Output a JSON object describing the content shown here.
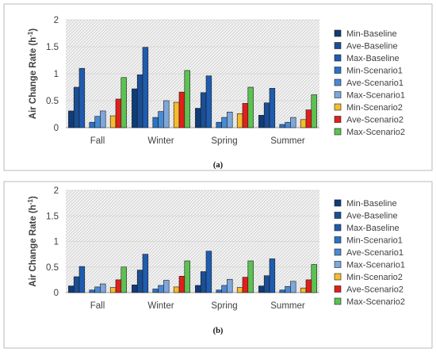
{
  "chart_data": [
    {
      "type": "bar",
      "caption": "(a)",
      "ylabel": "Air Change Rate (h",
      "ylabel_superscript": "-1",
      "ylabel_suffix": ")",
      "ylim": [
        0,
        2
      ],
      "yticks": [
        "0",
        "0.5",
        "1",
        "1.5",
        "2"
      ],
      "grid": true,
      "legend_position": "right",
      "categories": [
        "Fall",
        "Winter",
        "Spring",
        "Summer"
      ],
      "series": [
        {
          "name": "Min-Baseline",
          "color": "#0f3d78",
          "values": [
            0.31,
            0.72,
            0.36,
            0.23
          ]
        },
        {
          "name": "Ave-Baseline",
          "color": "#1a4f95",
          "values": [
            0.75,
            0.98,
            0.65,
            0.46
          ]
        },
        {
          "name": "Max-Baseline",
          "color": "#1f5cb0",
          "values": [
            1.1,
            1.49,
            0.96,
            0.73
          ]
        },
        {
          "name": "Min-Scenario1",
          "color": "#2a73c6",
          "values": [
            0.1,
            0.19,
            0.1,
            0.06
          ]
        },
        {
          "name": "Ave-Scenario1",
          "color": "#4a8ad4",
          "values": [
            0.21,
            0.3,
            0.19,
            0.1
          ]
        },
        {
          "name": "Max-Scenario1",
          "color": "#7ea7dc",
          "values": [
            0.31,
            0.5,
            0.29,
            0.19
          ]
        },
        {
          "name": "Min-Scenario2",
          "color": "#f5bc2e",
          "values": [
            0.22,
            0.47,
            0.26,
            0.15
          ]
        },
        {
          "name": "Ave-Scenario2",
          "color": "#e0201b",
          "values": [
            0.53,
            0.66,
            0.45,
            0.33
          ]
        },
        {
          "name": "Max-Scenario2",
          "color": "#5cc251",
          "values": [
            0.93,
            1.06,
            0.75,
            0.61
          ]
        }
      ]
    },
    {
      "type": "bar",
      "caption": "(b)",
      "ylabel": "Air Change Rate (h",
      "ylabel_superscript": "-1",
      "ylabel_suffix": ")",
      "ylim": [
        0,
        2
      ],
      "yticks": [
        "0",
        "0.5",
        "1",
        "1.5",
        "2"
      ],
      "grid": true,
      "legend_position": "right",
      "categories": [
        "Fall",
        "Winter",
        "Spring",
        "Summer"
      ],
      "series": [
        {
          "name": "Min-Baseline",
          "color": "#0f3d78",
          "values": [
            0.13,
            0.15,
            0.14,
            0.13
          ]
        },
        {
          "name": "Ave-Baseline",
          "color": "#1a4f95",
          "values": [
            0.31,
            0.44,
            0.41,
            0.33
          ]
        },
        {
          "name": "Max-Baseline",
          "color": "#1f5cb0",
          "values": [
            0.51,
            0.75,
            0.81,
            0.66
          ]
        },
        {
          "name": "Min-Scenario1",
          "color": "#2a73c6",
          "values": [
            0.05,
            0.07,
            0.05,
            0.05
          ]
        },
        {
          "name": "Ave-Scenario1",
          "color": "#4a8ad4",
          "values": [
            0.11,
            0.14,
            0.14,
            0.12
          ]
        },
        {
          "name": "Max-Scenario1",
          "color": "#7ea7dc",
          "values": [
            0.17,
            0.24,
            0.26,
            0.22
          ]
        },
        {
          "name": "Min-Scenario2",
          "color": "#f5bc2e",
          "values": [
            0.1,
            0.11,
            0.1,
            0.09
          ]
        },
        {
          "name": "Ave-Scenario2",
          "color": "#e0201b",
          "values": [
            0.25,
            0.32,
            0.3,
            0.25
          ]
        },
        {
          "name": "Max-Scenario2",
          "color": "#5cc251",
          "values": [
            0.5,
            0.62,
            0.62,
            0.55
          ]
        }
      ]
    }
  ]
}
